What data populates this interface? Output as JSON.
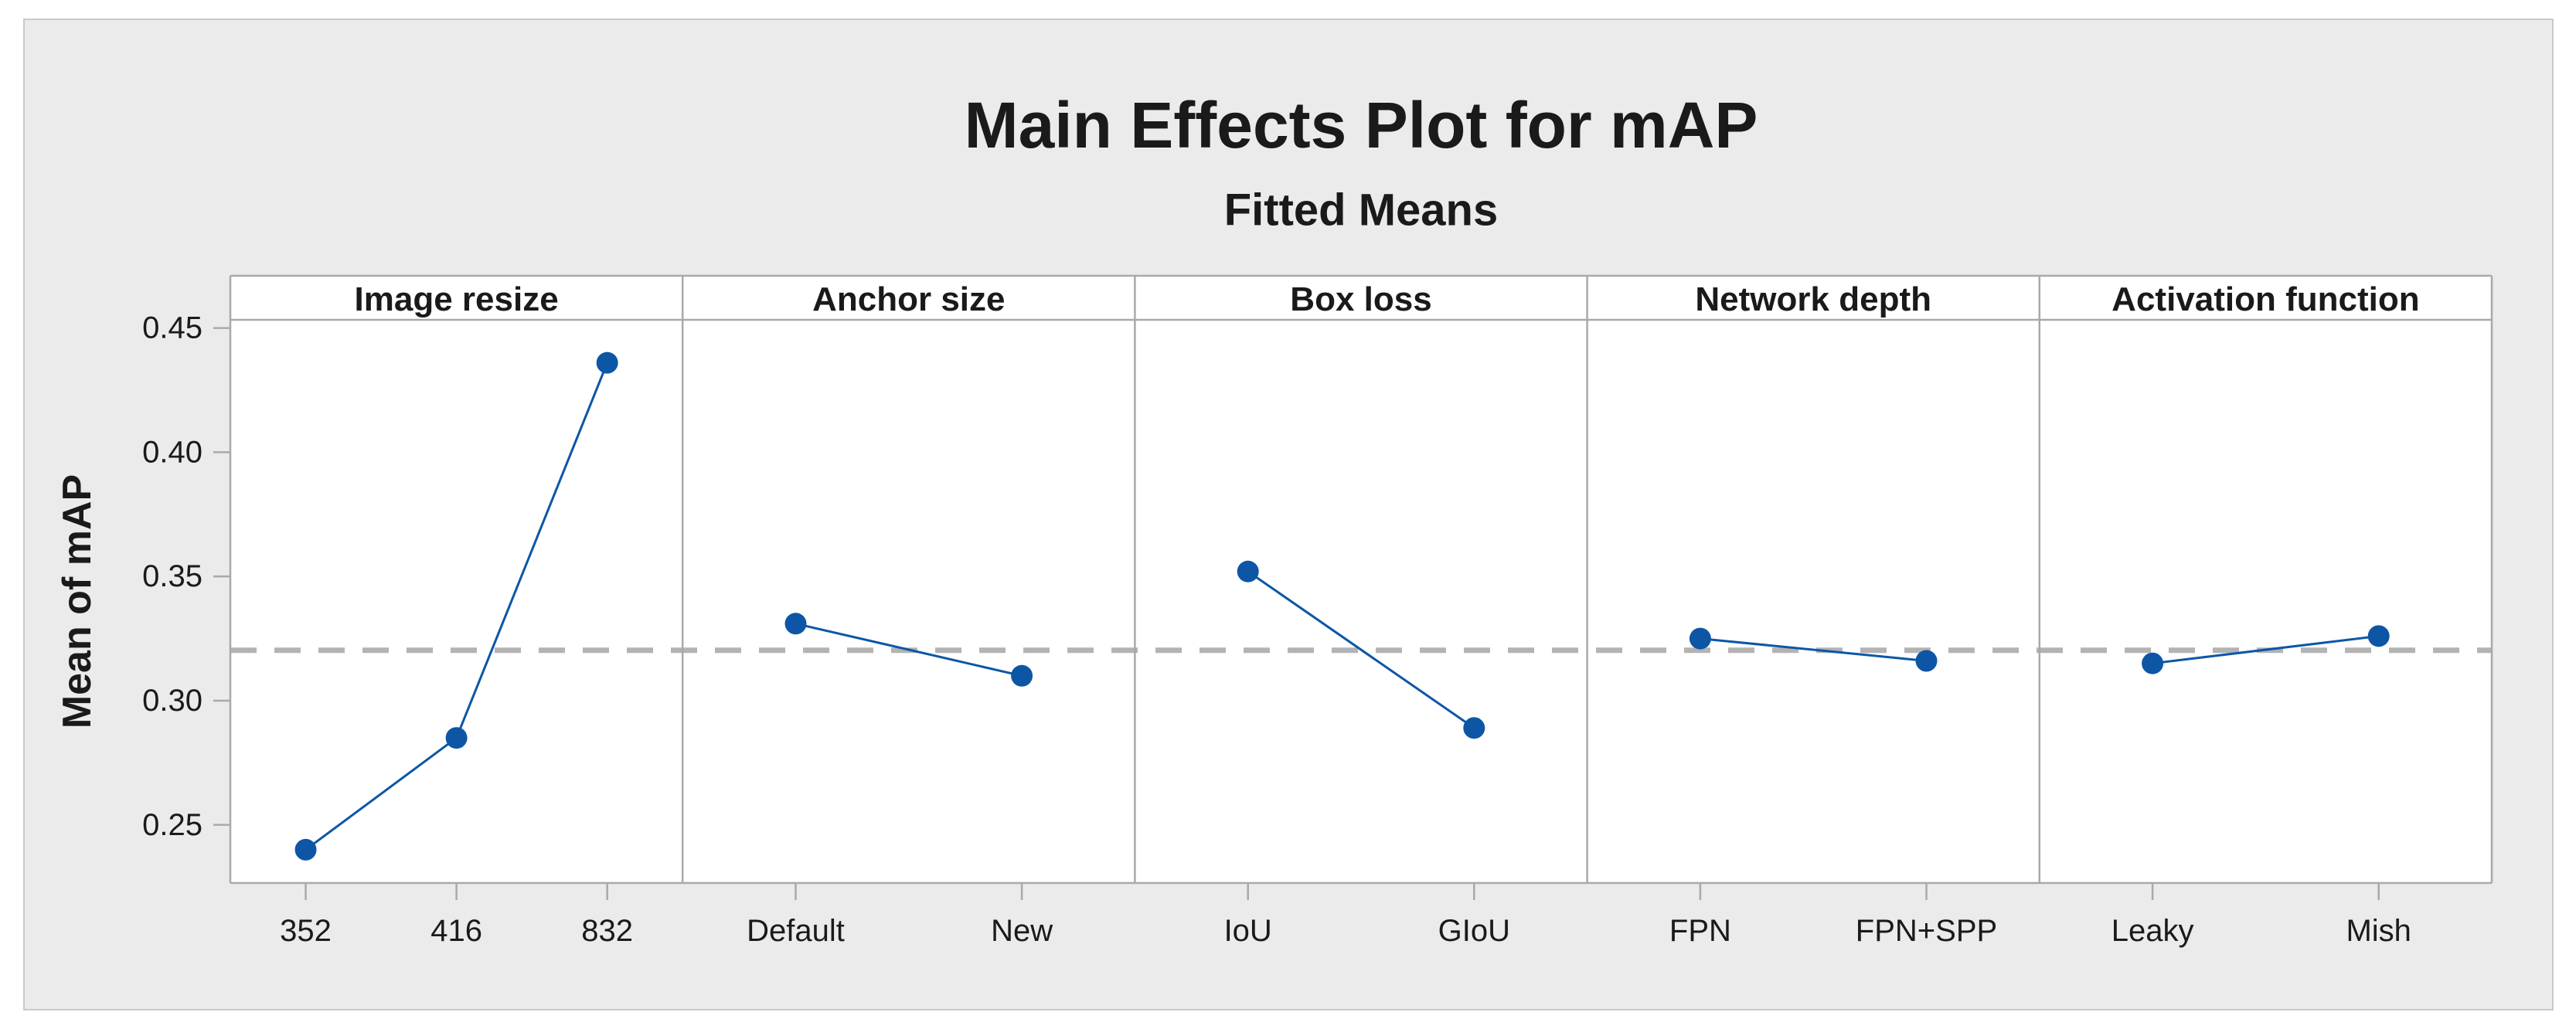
{
  "chart_data": {
    "type": "line",
    "title": "Main Effects Plot for mAP",
    "subtitle": "Fitted Means",
    "ylabel": "Mean of mAP",
    "ylim": [
      0.2266,
      0.4533
    ],
    "yticks": [
      0.25,
      0.3,
      0.35,
      0.4,
      0.45
    ],
    "ytick_labels": [
      "0.25",
      "0.30",
      "0.35",
      "0.40",
      "0.45"
    ],
    "reference_mean": 0.3203,
    "grid": false,
    "legend": "none",
    "panels": [
      {
        "label": "Image resize",
        "categories": [
          "352",
          "416",
          "832"
        ],
        "values": [
          0.24,
          0.285,
          0.436
        ]
      },
      {
        "label": "Anchor size",
        "categories": [
          "Default",
          "New"
        ],
        "values": [
          0.331,
          0.31
        ]
      },
      {
        "label": "Box loss",
        "categories": [
          "IoU",
          "GIoU"
        ],
        "values": [
          0.352,
          0.289
        ]
      },
      {
        "label": "Network depth",
        "categories": [
          "FPN",
          "FPN+SPP"
        ],
        "values": [
          0.325,
          0.316
        ]
      },
      {
        "label": "Activation function",
        "categories": [
          "Leaky",
          "Mish"
        ],
        "values": [
          0.315,
          0.326
        ]
      }
    ]
  },
  "colors": {
    "accent_blue": "#0d56a6",
    "reference_gray": "#b3b3b3",
    "frame_gray": "#a9a9a9",
    "figure_bg": "#ebebeb",
    "plot_bg": "#ffffff",
    "outer_border": "#c9c9c9",
    "text": "#1a1a1a"
  }
}
